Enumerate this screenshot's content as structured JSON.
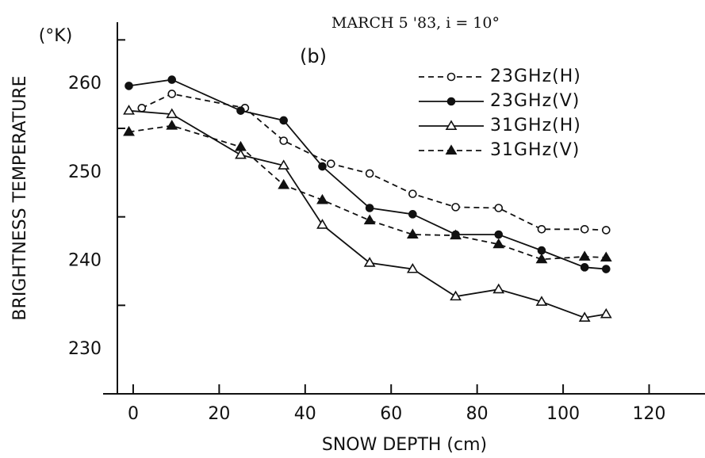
{
  "chart_data": {
    "type": "line",
    "title": "MARCH 5  '83, i = 10°",
    "subtitle": "(b)",
    "y_unit": "(°K)",
    "xlabel": "SNOW DEPTH (cm)",
    "ylabel": "BRIGHTNESS TEMPERATURE",
    "xlim": [
      -7,
      133
    ],
    "xticks": [
      0,
      20,
      40,
      60,
      80,
      100,
      120
    ],
    "ylim": [
      225,
      267
    ],
    "yticks": [
      230,
      240,
      250,
      260
    ],
    "yminorticks": [
      235,
      245,
      255,
      265
    ],
    "series": [
      {
        "name": "23GHz(H)",
        "color": "#111",
        "dash": true,
        "marker": "open-circle",
        "x": [
          2,
          9,
          26,
          35,
          46,
          55,
          65,
          75,
          85,
          95,
          105,
          110
        ],
        "values": [
          257.3,
          258.9,
          257.3,
          253.6,
          251,
          249.9,
          247.6,
          246.1,
          246,
          243.6,
          243.6,
          243.5
        ]
      },
      {
        "name": "23GHz(V)",
        "color": "#111",
        "dash": false,
        "marker": "filled-circle",
        "x": [
          -1,
          9,
          25,
          35,
          44,
          55,
          65,
          75,
          85,
          95,
          105,
          110
        ],
        "values": [
          259.8,
          260.5,
          257,
          255.9,
          250.7,
          246,
          245.3,
          243,
          243,
          241.2,
          239.3,
          239.1
        ]
      },
      {
        "name": "31GHz(H)",
        "color": "#111",
        "dash": false,
        "marker": "open-triangle",
        "x": [
          -1,
          9,
          25,
          35,
          44,
          55,
          65,
          75,
          85,
          95,
          105,
          110
        ],
        "values": [
          257,
          256.6,
          252,
          250.8,
          244.1,
          239.8,
          239.1,
          236,
          236.8,
          235.4,
          233.6,
          234
        ]
      },
      {
        "name": "31GHz(V)",
        "color": "#111",
        "dash": true,
        "marker": "filled-triangle",
        "x": [
          -1,
          9,
          25,
          35,
          44,
          55,
          65,
          75,
          85,
          95,
          105,
          110
        ],
        "values": [
          254.6,
          255.3,
          252.9,
          248.6,
          246.9,
          244.6,
          243,
          242.9,
          241.9,
          240.2,
          240.5,
          240.4
        ]
      }
    ]
  }
}
